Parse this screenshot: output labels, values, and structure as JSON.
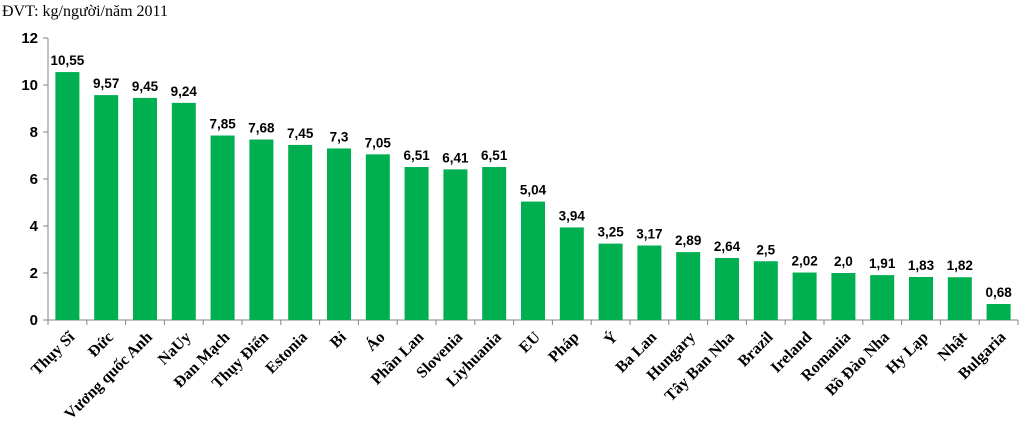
{
  "unit_label": "ĐVT: kg/người/năm 2011",
  "chart_data": {
    "type": "bar",
    "categories": [
      "Thụy Sĩ",
      "Đức",
      "Vương quốc Anh",
      "NaUy",
      "Đan Mạch",
      "Thụy Điển",
      "Estonia",
      "Bỉ",
      "Áo",
      "Phần Lan",
      "Slovenia",
      "Liyhuania",
      "EU",
      "Pháp",
      "Ý",
      "Ba Lan",
      "Hungary",
      "Tây Ban Nha",
      "Brazil",
      "Ireland",
      "Romania",
      "Bồ Đào Nha",
      "Hy Lạp",
      "Nhật",
      "Bulgaria"
    ],
    "values": [
      10.55,
      9.57,
      9.45,
      9.24,
      7.85,
      7.68,
      7.45,
      7.3,
      7.05,
      6.51,
      6.41,
      6.51,
      5.04,
      3.94,
      3.25,
      3.17,
      2.89,
      2.64,
      2.5,
      2.02,
      2.0,
      1.91,
      1.83,
      1.82,
      0.68
    ],
    "value_labels": [
      "10,55",
      "9,57",
      "9,45",
      "9,24",
      "7,85",
      "7,68",
      "7,45",
      "7,3",
      "7,05",
      "6,51",
      "6,41",
      "6,51",
      "5,04",
      "3,94",
      "3,25",
      "3,17",
      "2,89",
      "2,64",
      "2,5",
      "2,02",
      "2,0",
      "1,91",
      "1,83",
      "1,82",
      "0,68"
    ],
    "ylim": [
      0,
      12
    ],
    "yticks": [
      0,
      2,
      4,
      6,
      8,
      10,
      12
    ],
    "grid": false,
    "bar_color": "#00b050"
  }
}
